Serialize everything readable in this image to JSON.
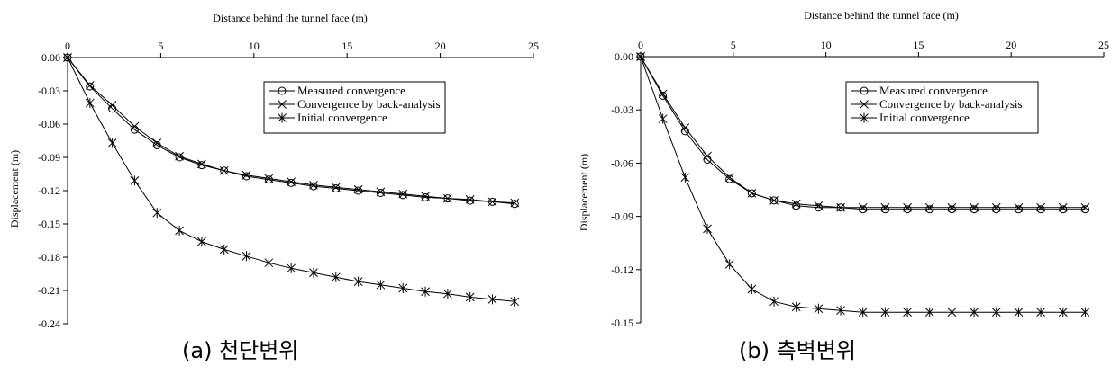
{
  "chart_data": [
    {
      "type": "line",
      "caption": "(a) 천단변위",
      "xlabel": "Distance behind the tunnel face (m)",
      "ylabel": "Displacement (m)",
      "xlim": [
        0,
        25
      ],
      "ylim": [
        -0.24,
        0
      ],
      "xticks": [
        0,
        5,
        10,
        15,
        20,
        25
      ],
      "yticks": [
        0,
        -0.03,
        -0.06,
        -0.09,
        -0.12,
        -0.15,
        -0.18,
        -0.21,
        -0.24
      ],
      "ytick_labels": [
        "0.00",
        "-0.03",
        "-0.06",
        "-0.09",
        "-0.12",
        "-0.15",
        "-0.18",
        "-0.21",
        "-0.24"
      ],
      "x_axis_position": "top",
      "grid": false,
      "legend_position": "top-right",
      "series": [
        {
          "name": "Measured convergence",
          "marker": "circle",
          "x": [
            0,
            1.2,
            2.4,
            3.6,
            4.8,
            6.0,
            7.2,
            8.4,
            9.6,
            10.8,
            12.0,
            13.2,
            14.4,
            15.6,
            16.8,
            18.0,
            19.2,
            20.4,
            21.6,
            22.8,
            24.0
          ],
          "y": [
            0,
            -0.026,
            -0.046,
            -0.065,
            -0.079,
            -0.09,
            -0.097,
            -0.102,
            -0.107,
            -0.11,
            -0.113,
            -0.116,
            -0.118,
            -0.12,
            -0.122,
            -0.124,
            -0.126,
            -0.127,
            -0.129,
            -0.13,
            -0.132
          ]
        },
        {
          "name": "Convergence by back-analysis",
          "marker": "x",
          "x": [
            0,
            1.2,
            2.4,
            3.6,
            4.8,
            6.0,
            7.2,
            8.4,
            9.6,
            10.8,
            12.0,
            13.2,
            14.4,
            15.6,
            16.8,
            18.0,
            19.2,
            20.4,
            21.6,
            22.8,
            24.0
          ],
          "y": [
            0,
            -0.025,
            -0.043,
            -0.062,
            -0.077,
            -0.089,
            -0.096,
            -0.102,
            -0.106,
            -0.109,
            -0.112,
            -0.115,
            -0.117,
            -0.119,
            -0.121,
            -0.123,
            -0.125,
            -0.127,
            -0.128,
            -0.13,
            -0.131
          ]
        },
        {
          "name": "Initial convergence",
          "marker": "asterisk",
          "x": [
            0,
            1.2,
            2.4,
            3.6,
            4.8,
            6.0,
            7.2,
            8.4,
            9.6,
            10.8,
            12.0,
            13.2,
            14.4,
            15.6,
            16.8,
            18.0,
            19.2,
            20.4,
            21.6,
            22.8,
            24.0
          ],
          "y": [
            0,
            -0.041,
            -0.077,
            -0.111,
            -0.14,
            -0.156,
            -0.166,
            -0.173,
            -0.179,
            -0.185,
            -0.19,
            -0.194,
            -0.198,
            -0.202,
            -0.205,
            -0.208,
            -0.211,
            -0.213,
            -0.216,
            -0.218,
            -0.22
          ]
        }
      ]
    },
    {
      "type": "line",
      "caption": "(b) 측벽변위",
      "xlabel": "Distance behind the tunnel face (m)",
      "ylabel": "Displacement (m)",
      "xlim": [
        0,
        25
      ],
      "ylim": [
        -0.15,
        0
      ],
      "xticks": [
        0,
        5,
        10,
        15,
        20,
        25
      ],
      "yticks": [
        0,
        -0.03,
        -0.06,
        -0.09,
        -0.12,
        -0.15
      ],
      "ytick_labels": [
        "0.00",
        "-0.03",
        "-0.06",
        "-0.09",
        "-0.12",
        "-0.15"
      ],
      "x_axis_position": "top",
      "grid": false,
      "legend_position": "top-right",
      "series": [
        {
          "name": "Measured convergence",
          "marker": "circle",
          "x": [
            0,
            1.2,
            2.4,
            3.6,
            4.8,
            6.0,
            7.2,
            8.4,
            9.6,
            10.8,
            12.0,
            13.2,
            14.4,
            15.6,
            16.8,
            18.0,
            19.2,
            20.4,
            21.6,
            22.8,
            24.0
          ],
          "y": [
            0,
            -0.022,
            -0.042,
            -0.058,
            -0.069,
            -0.077,
            -0.081,
            -0.084,
            -0.085,
            -0.085,
            -0.086,
            -0.086,
            -0.086,
            -0.086,
            -0.086,
            -0.086,
            -0.086,
            -0.086,
            -0.086,
            -0.086,
            -0.086
          ]
        },
        {
          "name": "Convergence by back-analysis",
          "marker": "x",
          "x": [
            0,
            1.2,
            2.4,
            3.6,
            4.8,
            6.0,
            7.2,
            8.4,
            9.6,
            10.8,
            12.0,
            13.2,
            14.4,
            15.6,
            16.8,
            18.0,
            19.2,
            20.4,
            21.6,
            22.8,
            24.0
          ],
          "y": [
            0,
            -0.021,
            -0.04,
            -0.056,
            -0.068,
            -0.077,
            -0.081,
            -0.083,
            -0.084,
            -0.085,
            -0.085,
            -0.085,
            -0.085,
            -0.085,
            -0.085,
            -0.085,
            -0.085,
            -0.085,
            -0.085,
            -0.085,
            -0.085
          ]
        },
        {
          "name": "Initial convergence",
          "marker": "asterisk",
          "x": [
            0,
            1.2,
            2.4,
            3.6,
            4.8,
            6.0,
            7.2,
            8.4,
            9.6,
            10.8,
            12.0,
            13.2,
            14.4,
            15.6,
            16.8,
            18.0,
            19.2,
            20.4,
            21.6,
            22.8,
            24.0
          ],
          "y": [
            0,
            -0.035,
            -0.068,
            -0.097,
            -0.117,
            -0.131,
            -0.138,
            -0.141,
            -0.142,
            -0.143,
            -0.144,
            -0.144,
            -0.144,
            -0.144,
            -0.144,
            -0.144,
            -0.144,
            -0.144,
            -0.144,
            -0.144,
            -0.144
          ]
        }
      ]
    }
  ]
}
